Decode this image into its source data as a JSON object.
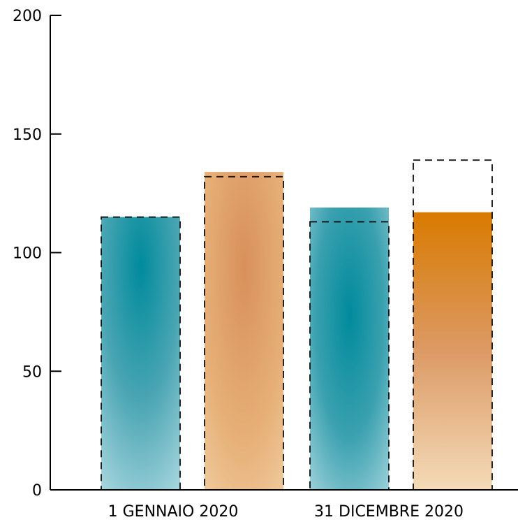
{
  "chart_data": {
    "type": "bar",
    "title": "",
    "xlabel": "",
    "ylabel": "",
    "ylim": [
      0,
      200
    ],
    "yticks": [
      0,
      50,
      100,
      150,
      200
    ],
    "categories": [
      "1 GENNAIO 2020",
      "31 DICEMBRE 2020"
    ],
    "series": [
      {
        "values": [
          115,
          119
        ],
        "color": "#008b9c"
      },
      {
        "values": [
          134,
          117
        ],
        "color": "#d97d0e"
      }
    ],
    "reference_values": [
      [
        115,
        113
      ],
      [
        132,
        139
      ]
    ],
    "grid": false,
    "legend": "none"
  }
}
